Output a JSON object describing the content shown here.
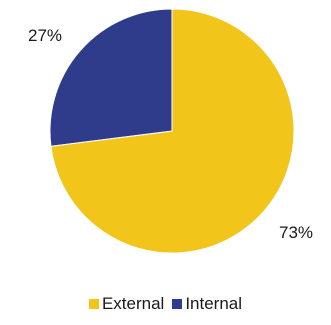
{
  "colors": {
    "external": "#F2C51A",
    "internal": "#2F3C8C",
    "edge": "#ffffff"
  },
  "chart_data": {
    "type": "pie",
    "slices": [
      {
        "label": "External",
        "value": 73,
        "display": "73%"
      },
      {
        "label": "Internal",
        "value": 27,
        "display": "27%"
      }
    ],
    "legend": [
      "External",
      "Internal"
    ],
    "legend_position": "bottom"
  }
}
